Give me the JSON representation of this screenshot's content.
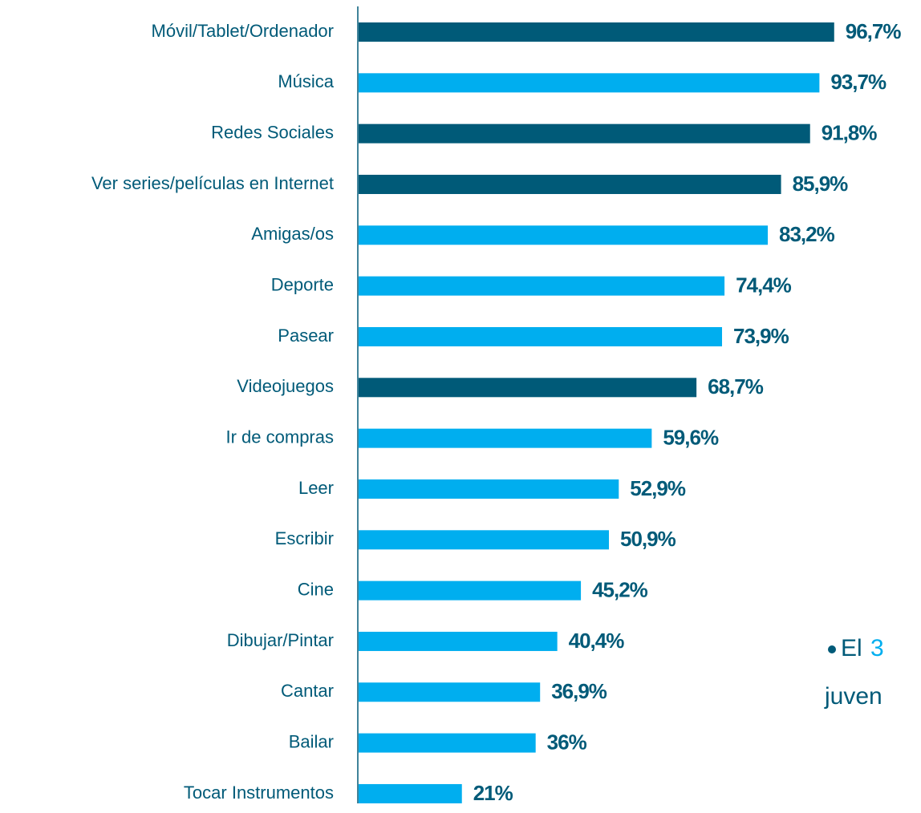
{
  "chart_data": {
    "type": "bar",
    "orientation": "horizontal",
    "categories": [
      "Móvil/Tablet/Ordenador",
      "Música",
      "Redes Sociales",
      "Ver series/películas en Internet",
      "Amigas/os",
      "Deporte",
      "Pasear",
      "Videojuegos",
      "Ir de compras",
      "Leer",
      "Escribir",
      "Cine",
      "Dibujar/Pintar",
      "Cantar",
      "Bailar",
      "Tocar Instrumentos"
    ],
    "values": [
      96.7,
      93.7,
      91.8,
      85.9,
      83.2,
      74.4,
      73.9,
      68.7,
      59.6,
      52.9,
      50.9,
      45.2,
      40.4,
      36.9,
      36,
      21
    ],
    "value_labels": [
      "96,7%",
      "93,7%",
      "91,8%",
      "85,9%",
      "83,2%",
      "74,4%",
      "73,9%",
      "68,7%",
      "59,6%",
      "52,9%",
      "50,9%",
      "45,2%",
      "40,4%",
      "36,9%",
      "36%",
      "21%"
    ],
    "colors": [
      "#005a78",
      "#00aeef",
      "#005a78",
      "#005a78",
      "#00aeef",
      "#00aeef",
      "#00aeef",
      "#005a78",
      "#00aeef",
      "#00aeef",
      "#00aeef",
      "#00aeef",
      "#00aeef",
      "#00aeef",
      "#00aeef",
      "#00aeef"
    ],
    "xlim": [
      0,
      100
    ],
    "annotations": [
      "El",
      "3",
      "juven"
    ]
  }
}
